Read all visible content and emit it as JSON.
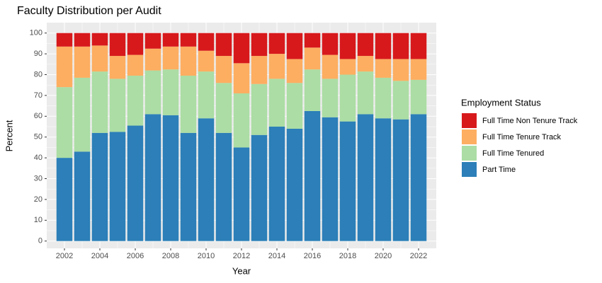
{
  "chart_data": {
    "type": "stacked_bar",
    "title": "Faculty Distribution per Audit",
    "x_label": "Year",
    "y_label": "Percent",
    "legend_title": "Employment Status",
    "legend_position": "right",
    "grid": true,
    "x": [
      2002,
      2003,
      2004,
      2005,
      2006,
      2007,
      2008,
      2009,
      2010,
      2011,
      2012,
      2013,
      2014,
      2015,
      2016,
      2017,
      2018,
      2019,
      2020,
      2021,
      2022
    ],
    "series": [
      {
        "name": "Part Time",
        "color": "#2c7fb8",
        "values": [
          40,
          43,
          52,
          52.5,
          55.5,
          61,
          60.5,
          52,
          59,
          52,
          45,
          51,
          55,
          54,
          62.5,
          59.5,
          57.5,
          61,
          59,
          58.5,
          61
        ]
      },
      {
        "name": "Full Time Tenured",
        "color": "#abdda4",
        "values": [
          34,
          35.5,
          29.5,
          25.5,
          24,
          21,
          22,
          27.5,
          22.5,
          24,
          26,
          24.5,
          23,
          22,
          20,
          18.5,
          22.5,
          20.5,
          19.5,
          18.5,
          16.5
        ]
      },
      {
        "name": "Full Time Tenure Track",
        "color": "#fdae61",
        "values": [
          19.5,
          15,
          12.5,
          11,
          10,
          10.5,
          11,
          14,
          10,
          13,
          14.5,
          13.5,
          12,
          11.5,
          10.5,
          11.5,
          7.5,
          7.5,
          9,
          10.5,
          10
        ]
      },
      {
        "name": "Full Time Non Tenure Track",
        "color": "#d7191c",
        "values": [
          6.5,
          6.5,
          6,
          11,
          10.5,
          7.5,
          6.5,
          6.5,
          8.5,
          11,
          14.5,
          11,
          10,
          12.5,
          7,
          10.5,
          12.5,
          11,
          12.5,
          12.5,
          12.5
        ]
      }
    ],
    "xlim": [
      2001,
      2023
    ],
    "xticks": [
      2002,
      2004,
      2006,
      2008,
      2010,
      2012,
      2014,
      2016,
      2018,
      2020,
      2022
    ],
    "ylim": [
      -3.5,
      105
    ],
    "yticks": [
      0,
      10,
      20,
      30,
      40,
      50,
      60,
      70,
      80,
      90,
      100
    ]
  }
}
